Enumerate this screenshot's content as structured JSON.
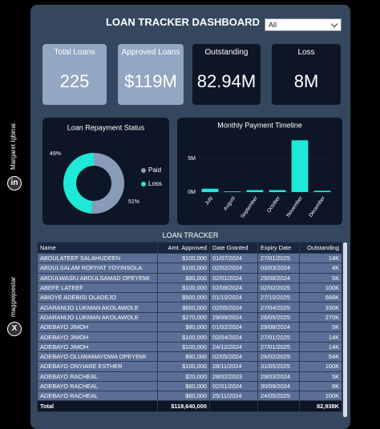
{
  "title": "LOAN TRACKER DASHBOARD",
  "filter": "All",
  "sidebar": {
    "author": "Margaret Igbinai",
    "handle": "maggiejoestar"
  },
  "cards": [
    {
      "label": "Total Loans",
      "value": "225"
    },
    {
      "label": "Approved Loans",
      "value": "$119M"
    },
    {
      "label": "Outstanding",
      "value": "82.94M"
    },
    {
      "label": "Loss",
      "value": "8M"
    }
  ],
  "chart_data": [
    {
      "type": "donut",
      "title": "Loan Repayment Status",
      "categories": [
        "Paid",
        "Loss"
      ],
      "values": [
        51,
        49
      ],
      "value_labels": [
        "51%",
        "49%"
      ],
      "colors": [
        "#8a9bb8",
        "#1ee8d6"
      ],
      "legend": "right"
    },
    {
      "type": "bar",
      "title": "Monthly Payment Timeline",
      "categories": [
        "July",
        "August",
        "September",
        "October",
        "November",
        "December"
      ],
      "values": [
        500000,
        100000,
        300000,
        300000,
        7700000,
        200000
      ],
      "color": "#1ee8d6",
      "ylim": [
        0,
        9000000
      ],
      "yticks": [
        {
          "value": 0,
          "label": "0M"
        },
        {
          "value": 5000000,
          "label": "5M"
        }
      ]
    }
  ],
  "table": {
    "title": "LOAN TRACKER",
    "columns": [
      "Name",
      "Amt. Approved",
      "Date Granted",
      "Expiry Date",
      "Outstanding"
    ],
    "rows": [
      [
        "ABDULATEEF SALAHUDEEN",
        "$100,000",
        "01/07/2024",
        "27/01/2025",
        "14K"
      ],
      [
        "ABDULSALAM ROFIYAT YOYINSOLA",
        "$100,000",
        "02/02/2024",
        "03/03/2024",
        "4K"
      ],
      [
        "ABDULWASIU ABDULSAMAD OPEYEMI",
        "$80,000",
        "02/01/2024",
        "29/08/2024",
        "5K"
      ],
      [
        "ABEFE LATEEF",
        "$100,000",
        "02/08/2024",
        "02/02/2025",
        "100K"
      ],
      [
        "ABIOYE ADEBISI OLADEJO",
        "$500,000",
        "01/10/2024",
        "27/10/2025",
        "668K"
      ],
      [
        "ADARANIJO LUKMAN AKOLAWOLE",
        "$650,000",
        "02/05/2024",
        "27/04/2025",
        "330K"
      ],
      [
        "ADARANIJO LUKMAN AKOLAWOLE",
        "$270,000",
        "29/08/2024",
        "26/05/2025",
        "270K"
      ],
      [
        "ADEBAYO JIMOH",
        "$80,000",
        "01/02/2024",
        "29/08/2024",
        "5K"
      ],
      [
        "ADEBAYO JIMOH",
        "$100,000",
        "02/04/2024",
        "27/01/2025",
        "14K"
      ],
      [
        "ADEBAYO JIMOH",
        "$100,000",
        "24/12/2024",
        "27/01/2025",
        "14K"
      ],
      [
        "ADEBAYO OLUWAMAYOWA OPEYEMI",
        "$90,000",
        "02/05/2024",
        "26/02/2025",
        "54K"
      ],
      [
        "ADEBAYO ONYIARE ESTHER",
        "$100,000",
        "28/11/2024",
        "31/05/2025",
        "100K"
      ],
      [
        "ADEBAYO RACHEAL",
        "$20,000",
        "28/02/2023",
        "29/03/2024",
        "5K"
      ],
      [
        "ADEBAYO RACHEAL",
        "$60,000",
        "02/01/2024",
        "30/09/2024",
        "8K"
      ],
      [
        "ADEBAYO RACHEAL",
        "$60,000",
        "25/11/2024",
        "24/05/2025",
        "100K"
      ]
    ],
    "total": [
      "Total",
      "$118,640,000",
      "",
      "",
      "82,938K"
    ]
  }
}
